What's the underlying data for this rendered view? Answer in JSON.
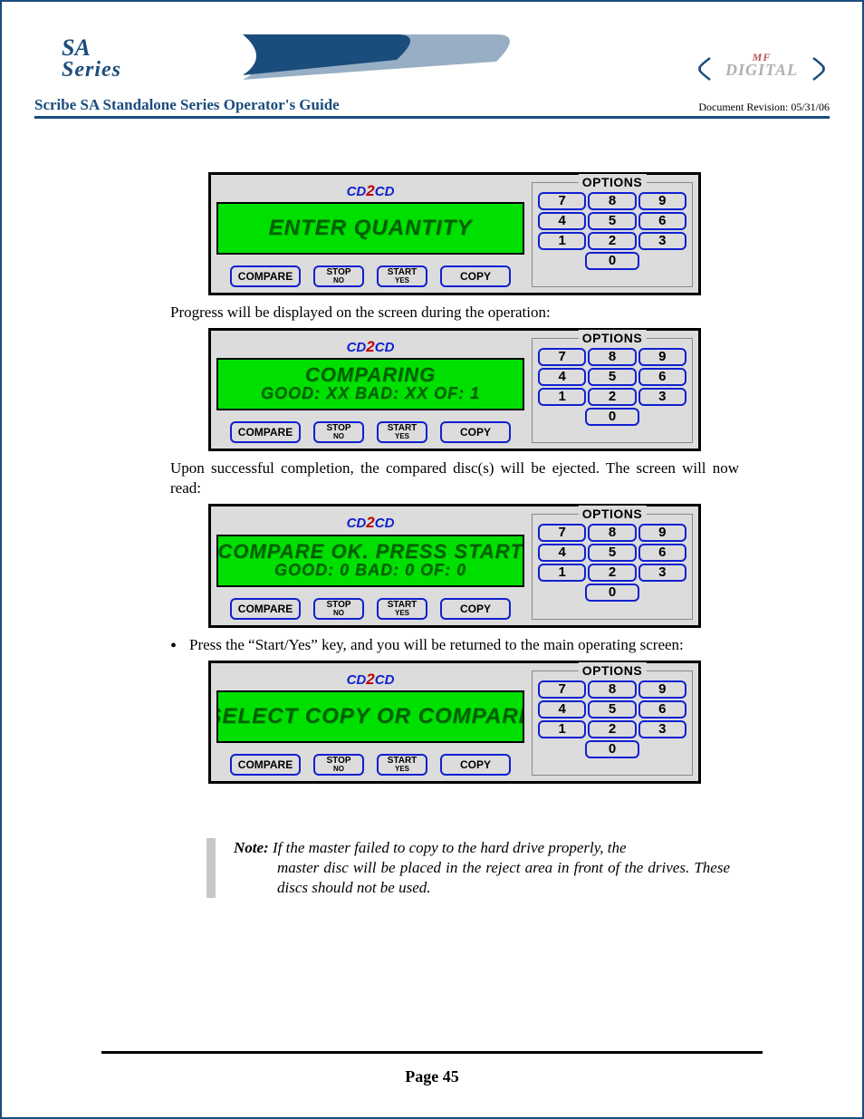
{
  "header": {
    "sa": "SA",
    "series": "Series",
    "mf": "MF",
    "digital": "DIGITAL",
    "guide_title": "Scribe SA Standalone Series Operator's Guide",
    "doc_rev": "Document Revision: 05/31/06"
  },
  "colors": {
    "page_border": "#1a4c7c",
    "lcd_bg": "#00e000",
    "lcd_text": "#006000",
    "btn_border": "#1020d0",
    "panel_bg": "#dcdcdc"
  },
  "logo_cd": {
    "c1": "CD",
    "two": "2",
    "c2": "CD"
  },
  "buttons": {
    "compare": "COMPARE",
    "stop": "STOP",
    "stop_sub": "NO",
    "start": "START",
    "start_sub": "YES",
    "copy": "COPY"
  },
  "options": {
    "label": "OPTIONS",
    "keys": [
      "7",
      "8",
      "9",
      "4",
      "5",
      "6",
      "1",
      "2",
      "3"
    ],
    "zero": "0"
  },
  "panels": [
    {
      "line1": "ENTER QUANTITY",
      "line2": "",
      "single": true
    },
    {
      "line1": "COMPARING",
      "line2": "GOOD: XX   BAD: XX   OF: 1",
      "single": false
    },
    {
      "line1": "COMPARE OK. PRESS START",
      "line2": "GOOD: 0   BAD: 0   OF: 0",
      "single": false
    },
    {
      "line1": "SELECT COPY OR COMPARE",
      "line2": "",
      "single": true
    }
  ],
  "text": {
    "para1": "Progress will be displayed on the screen during the operation:",
    "para2": "Upon successful completion, the compared disc(s) will be ejected. The screen will now read:",
    "bullet": "Press the “Start/Yes” key, and you will be returned to the main operating screen:",
    "note_label": "Note:",
    "note_body_first": "If the master failed to copy to the hard drive properly, the",
    "note_body_rest": "master disc will be placed in the reject area in front of the drives. These discs should not be used."
  },
  "footer": {
    "page": "Page 45"
  }
}
